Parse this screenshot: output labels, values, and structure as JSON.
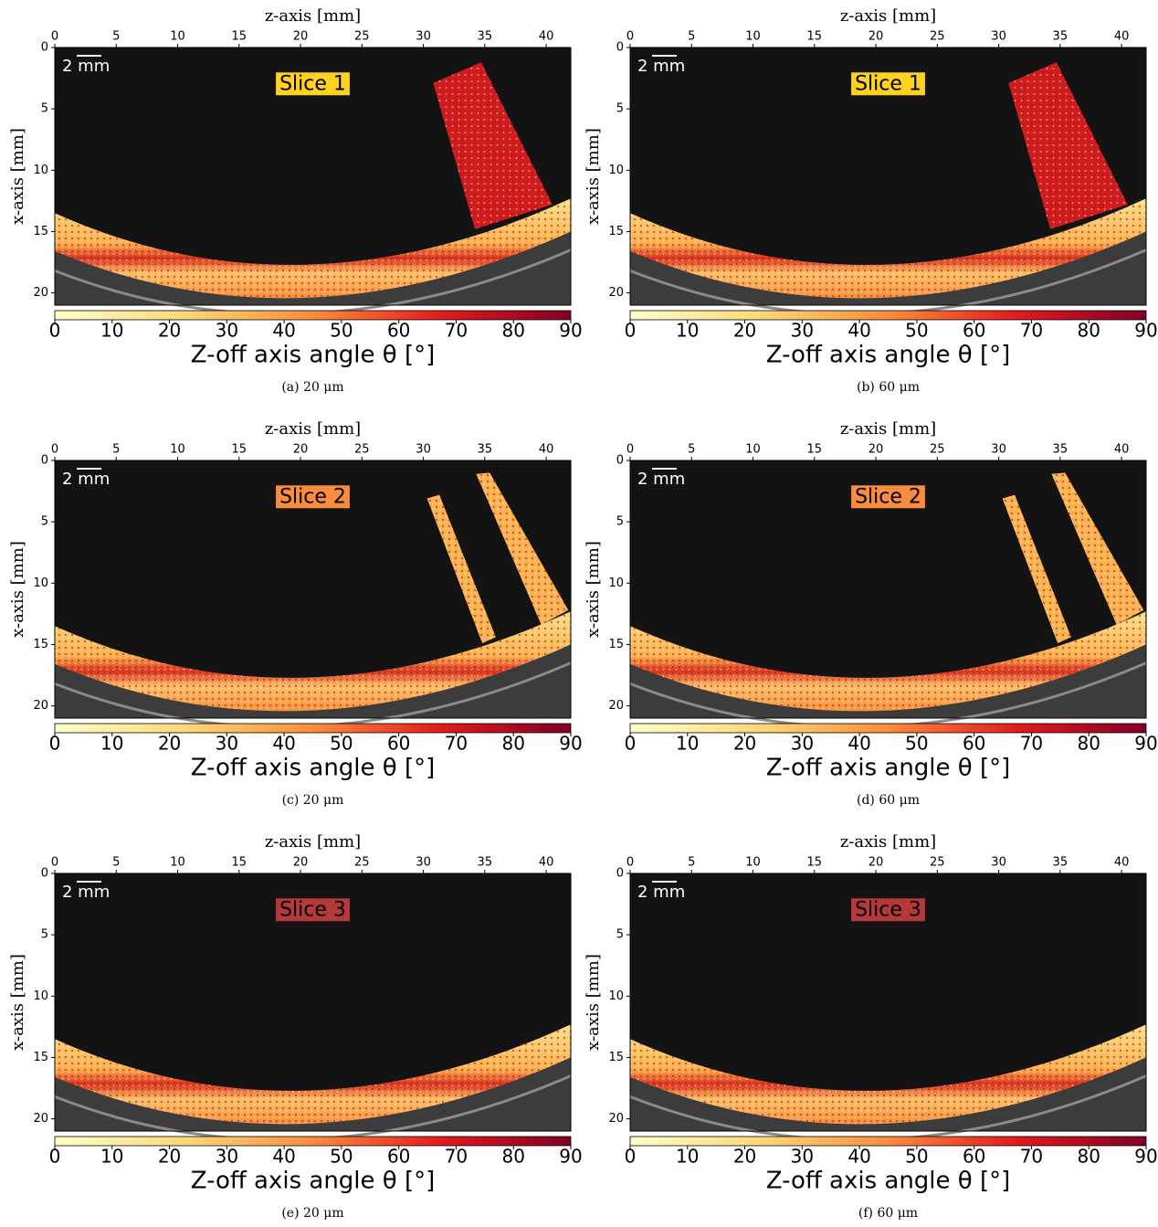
{
  "chart_data": [
    {
      "type": "image",
      "xlabel": "z-axis [mm]",
      "ylabel": "x-axis [mm]",
      "xlim": [
        0,
        42
      ],
      "ylim": [
        0,
        21
      ],
      "xticks": [
        0,
        5,
        10,
        15,
        20,
        25,
        30,
        35,
        40
      ],
      "yticks": [
        0,
        5,
        10,
        15,
        20
      ],
      "annotation": "Slice 1",
      "annotation_color": "#ffd21f",
      "scale_bar": "2 mm",
      "colorbar": {
        "label": "Z-off axis angle θ [°]",
        "lim": [
          0,
          90
        ],
        "ticks": [
          0,
          10,
          20,
          30,
          40,
          50,
          60,
          70,
          80,
          90
        ]
      },
      "caption": "(a) 20 μm"
    },
    {
      "type": "image",
      "xlabel": "z-axis [mm]",
      "ylabel": "x-axis [mm]",
      "xlim": [
        0,
        42
      ],
      "ylim": [
        0,
        21
      ],
      "xticks": [
        0,
        5,
        10,
        15,
        20,
        25,
        30,
        35,
        40
      ],
      "yticks": [
        0,
        5,
        10,
        15,
        20
      ],
      "annotation": "Slice 1",
      "annotation_color": "#ffd21f",
      "scale_bar": "2 mm",
      "colorbar": {
        "label": "Z-off axis angle θ [°]",
        "lim": [
          0,
          90
        ],
        "ticks": [
          0,
          10,
          20,
          30,
          40,
          50,
          60,
          70,
          80,
          90
        ]
      },
      "caption": "(b) 60 μm"
    },
    {
      "type": "image",
      "xlabel": "z-axis [mm]",
      "ylabel": "x-axis [mm]",
      "xlim": [
        0,
        42
      ],
      "ylim": [
        0,
        21
      ],
      "xticks": [
        0,
        5,
        10,
        15,
        20,
        25,
        30,
        35,
        40
      ],
      "yticks": [
        0,
        5,
        10,
        15,
        20
      ],
      "annotation": "Slice 2",
      "annotation_color": "#f98c3f",
      "scale_bar": "2 mm",
      "colorbar": {
        "label": "Z-off axis angle θ [°]",
        "lim": [
          0,
          90
        ],
        "ticks": [
          0,
          10,
          20,
          30,
          40,
          50,
          60,
          70,
          80,
          90
        ]
      },
      "caption": "(c) 20 μm"
    },
    {
      "type": "image",
      "xlabel": "z-axis [mm]",
      "ylabel": "x-axis [mm]",
      "xlim": [
        0,
        42
      ],
      "ylim": [
        0,
        21
      ],
      "xticks": [
        0,
        5,
        10,
        15,
        20,
        25,
        30,
        35,
        40
      ],
      "yticks": [
        0,
        5,
        10,
        15,
        20
      ],
      "annotation": "Slice 2",
      "annotation_color": "#f98c3f",
      "scale_bar": "2 mm",
      "colorbar": {
        "label": "Z-off axis angle θ [°]",
        "lim": [
          0,
          90
        ],
        "ticks": [
          0,
          10,
          20,
          30,
          40,
          50,
          60,
          70,
          80,
          90
        ]
      },
      "caption": "(d) 60 μm"
    },
    {
      "type": "image",
      "xlabel": "z-axis [mm]",
      "ylabel": "x-axis [mm]",
      "xlim": [
        0,
        42
      ],
      "ylim": [
        0,
        21
      ],
      "xticks": [
        0,
        5,
        10,
        15,
        20,
        25,
        30,
        35,
        40
      ],
      "yticks": [
        0,
        5,
        10,
        15,
        20
      ],
      "annotation": "Slice 3",
      "annotation_color": "#b5383a",
      "scale_bar": "2 mm",
      "colorbar": {
        "label": "Z-off axis angle θ [°]",
        "lim": [
          0,
          90
        ],
        "ticks": [
          0,
          10,
          20,
          30,
          40,
          50,
          60,
          70,
          80,
          90
        ]
      },
      "caption": "(e) 20 μm"
    },
    {
      "type": "image",
      "xlabel": "z-axis [mm]",
      "ylabel": "x-axis [mm]",
      "xlim": [
        0,
        42
      ],
      "ylim": [
        0,
        21
      ],
      "xticks": [
        0,
        5,
        10,
        15,
        20,
        25,
        30,
        35,
        40
      ],
      "yticks": [
        0,
        5,
        10,
        15,
        20
      ],
      "annotation": "Slice 3",
      "annotation_color": "#b5383a",
      "scale_bar": "2 mm",
      "colorbar": {
        "label": "Z-off axis angle θ [°]",
        "lim": [
          0,
          90
        ],
        "ticks": [
          0,
          10,
          20,
          30,
          40,
          50,
          60,
          70,
          80,
          90
        ]
      },
      "caption": "(f) 60 μm"
    }
  ]
}
